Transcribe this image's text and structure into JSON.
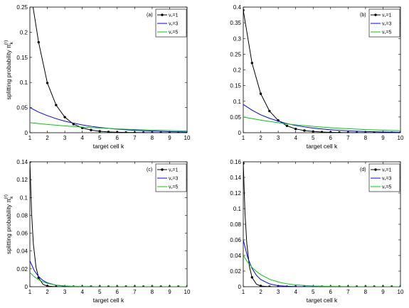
{
  "chart_data": [
    {
      "type": "line",
      "panel_label": "(a)",
      "xlabel": "target cell k",
      "ylabel": "splitting probability π",
      "ylabel_sub": "k",
      "ylabel_sup": "(r)",
      "xlim": [
        1,
        10
      ],
      "ylim": [
        0,
        0.25
      ],
      "xticks": [
        "1",
        "2",
        "3",
        "4",
        "5",
        "6",
        "7",
        "8",
        "9",
        "10"
      ],
      "yticks": [
        "0",
        "0.05",
        "0.1",
        "0.15",
        "0.2",
        "0.25"
      ],
      "legend_position": "top-right",
      "series": [
        {
          "name": "v = 1",
          "legend_main": "v",
          "legend_sub": "*",
          "legend_tail": "=1",
          "color": "#000000",
          "markers": true,
          "x": [
            1,
            1.5,
            2,
            2.5,
            3,
            3.5,
            4,
            4.5,
            5,
            5.5,
            6,
            6.5,
            7,
            7.5,
            8,
            8.5,
            9,
            9.5,
            10
          ],
          "y": [
            0.29,
            0.18,
            0.099,
            0.055,
            0.031,
            0.017,
            0.0095,
            0.0053,
            0.0029,
            0.0016,
            0.0009,
            0.0005,
            0.0003,
            0.0002,
            0.0001,
            0,
            0,
            0,
            0
          ]
        },
        {
          "name": "v = 3",
          "legend_main": "v",
          "legend_sub": "*",
          "legend_tail": "=3",
          "color": "#0000ff",
          "markers": false,
          "x": [
            1,
            1.5,
            2,
            2.5,
            3,
            3.5,
            4,
            4.5,
            5,
            5.5,
            6,
            6.5,
            7,
            7.5,
            8,
            8.5,
            9,
            9.5,
            10
          ],
          "y": [
            0.05,
            0.041,
            0.034,
            0.028,
            0.023,
            0.019,
            0.0155,
            0.0128,
            0.0105,
            0.0087,
            0.0071,
            0.0059,
            0.0048,
            0.004,
            0.0033,
            0.0027,
            0.0022,
            0.0018,
            0.0015
          ]
        },
        {
          "name": "v = 5",
          "legend_main": "v",
          "legend_sub": "*",
          "legend_tail": "=5",
          "color": "#00cc00",
          "markers": false,
          "x": [
            1,
            1.5,
            2,
            2.5,
            3,
            3.5,
            4,
            4.5,
            5,
            5.5,
            6,
            6.5,
            7,
            7.5,
            8,
            8.5,
            9,
            9.5,
            10
          ],
          "y": [
            0.02,
            0.0182,
            0.0165,
            0.015,
            0.0136,
            0.0124,
            0.0112,
            0.0102,
            0.0093,
            0.0084,
            0.0076,
            0.0069,
            0.0063,
            0.0057,
            0.0052,
            0.0047,
            0.0043,
            0.0039,
            0.0035
          ]
        }
      ]
    },
    {
      "type": "line",
      "panel_label": "(b)",
      "xlabel": "target cell k",
      "ylabel": "",
      "xlim": [
        1,
        10
      ],
      "ylim": [
        0,
        0.4
      ],
      "xticks": [
        "1",
        "2",
        "3",
        "4",
        "5",
        "6",
        "7",
        "8",
        "9",
        "10"
      ],
      "yticks": [
        "0",
        "0.05",
        "0.1",
        "0.15",
        "0.2",
        "0.25",
        "0.3",
        "0.35",
        "0.4"
      ],
      "legend_position": "top-right",
      "series": [
        {
          "name": "v = 1",
          "legend_main": "v",
          "legend_sub": "*",
          "legend_tail": "=1",
          "color": "#000000",
          "markers": true,
          "x": [
            1,
            1.5,
            2,
            2.5,
            3,
            3.5,
            4,
            4.5,
            5,
            5.5,
            6,
            6.5,
            7,
            7.5,
            8,
            8.5,
            9,
            9.5,
            10
          ],
          "y": [
            0.39,
            0.222,
            0.124,
            0.069,
            0.039,
            0.022,
            0.012,
            0.0069,
            0.0039,
            0.0022,
            0.0012,
            0.0007,
            0.0004,
            0.0002,
            0.0001,
            0,
            0,
            0,
            0
          ]
        },
        {
          "name": "v = 3",
          "legend_main": "v",
          "legend_sub": "*",
          "legend_tail": "=3",
          "color": "#0000ff",
          "markers": false,
          "x": [
            1,
            1.5,
            2,
            2.5,
            3,
            3.5,
            4,
            4.5,
            5,
            5.5,
            6,
            6.5,
            7,
            7.5,
            8,
            8.5,
            9,
            9.5,
            10
          ],
          "y": [
            0.09,
            0.072,
            0.057,
            0.046,
            0.037,
            0.029,
            0.023,
            0.0185,
            0.0148,
            0.0118,
            0.0094,
            0.0075,
            0.006,
            0.0048,
            0.0038,
            0.003,
            0.0024,
            0.0019,
            0.0015
          ]
        },
        {
          "name": "v = 5",
          "legend_main": "v",
          "legend_sub": "*",
          "legend_tail": "=5",
          "color": "#00cc00",
          "markers": false,
          "x": [
            1,
            1.5,
            2,
            2.5,
            3,
            3.5,
            4,
            4.5,
            5,
            5.5,
            6,
            6.5,
            7,
            7.5,
            8,
            8.5,
            9,
            9.5,
            10
          ],
          "y": [
            0.05,
            0.045,
            0.04,
            0.036,
            0.032,
            0.028,
            0.025,
            0.0225,
            0.02,
            0.0178,
            0.0159,
            0.0142,
            0.0126,
            0.0112,
            0.01,
            0.0089,
            0.008,
            0.0071,
            0.0063
          ]
        }
      ]
    },
    {
      "type": "line",
      "panel_label": "(c)",
      "xlabel": "target cell k",
      "ylabel": "splitting probability π",
      "ylabel_sub": "k",
      "ylabel_sup": "(r)",
      "xlim": [
        1,
        10
      ],
      "ylim": [
        0,
        0.14
      ],
      "xticks": [
        "1",
        "2",
        "3",
        "4",
        "5",
        "6",
        "7",
        "8",
        "9",
        "10"
      ],
      "yticks": [
        "0",
        "0.02",
        "0.04",
        "0.06",
        "0.08",
        "0.1",
        "0.12",
        "0.14"
      ],
      "legend_position": "top-right",
      "series": [
        {
          "name": "v = 1",
          "legend_main": "v",
          "legend_sub": "*",
          "legend_tail": "=1",
          "color": "#000000",
          "markers": true,
          "x": [
            1,
            1.1,
            1.2,
            1.35,
            1.5,
            1.75,
            2,
            2.5,
            3,
            3.5,
            4,
            4.5,
            5,
            5.5,
            6,
            6.5,
            7,
            7.5,
            8,
            8.5,
            9,
            9.5,
            10
          ],
          "y": [
            0.14,
            0.082,
            0.048,
            0.022,
            0.0101,
            0.0027,
            0.0007,
            0,
            0,
            0,
            0,
            0,
            0,
            0,
            0,
            0,
            0,
            0,
            0,
            0,
            0,
            0,
            0
          ]
        },
        {
          "name": "v = 3",
          "legend_main": "v",
          "legend_sub": "*",
          "legend_tail": "=3",
          "color": "#0000ff",
          "markers": false,
          "x": [
            1,
            1.25,
            1.5,
            1.75,
            2,
            2.5,
            3,
            3.5,
            4,
            5,
            6,
            7,
            8,
            9,
            10
          ],
          "y": [
            0.029,
            0.0181,
            0.0113,
            0.007,
            0.0044,
            0.0017,
            0.0007,
            0.0003,
            0.0001,
            0,
            0,
            0,
            0,
            0,
            0
          ]
        },
        {
          "name": "v = 5",
          "legend_main": "v",
          "legend_sub": "*",
          "legend_tail": "=5",
          "color": "#00cc00",
          "markers": false,
          "x": [
            1,
            1.25,
            1.5,
            1.75,
            2,
            2.5,
            3,
            3.5,
            4,
            5,
            6,
            7,
            8,
            9,
            10
          ],
          "y": [
            0.016,
            0.0112,
            0.0078,
            0.0054,
            0.0038,
            0.0018,
            0.0009,
            0.0004,
            0.0002,
            0,
            0,
            0,
            0,
            0,
            0
          ]
        }
      ]
    },
    {
      "type": "line",
      "panel_label": "(d)",
      "xlabel": "target cell k",
      "ylabel": "",
      "xlim": [
        1,
        10
      ],
      "ylim": [
        0,
        0.16
      ],
      "xticks": [
        "1",
        "2",
        "3",
        "4",
        "5",
        "6",
        "7",
        "8",
        "9",
        "10"
      ],
      "yticks": [
        "0",
        "0.02",
        "0.04",
        "0.06",
        "0.08",
        "0.1",
        "0.12",
        "0.14",
        "0.16"
      ],
      "legend_position": "top-right",
      "series": [
        {
          "name": "v = 1",
          "legend_main": "v",
          "legend_sub": "*",
          "legend_tail": "=1",
          "color": "#000000",
          "markers": true,
          "x": [
            1,
            1.1,
            1.2,
            1.35,
            1.5,
            1.75,
            2,
            2.5,
            3,
            3.5,
            4,
            4.5,
            5,
            5.5,
            6,
            6.5,
            7,
            7.5,
            8,
            8.5,
            9,
            9.5,
            10
          ],
          "y": [
            0.158,
            0.094,
            0.056,
            0.026,
            0.012,
            0.0033,
            0.0009,
            0,
            0,
            0,
            0,
            0,
            0,
            0,
            0,
            0,
            0,
            0,
            0,
            0,
            0,
            0,
            0
          ]
        },
        {
          "name": "v = 3",
          "legend_main": "v",
          "legend_sub": "*",
          "legend_tail": "=3",
          "color": "#0000ff",
          "markers": false,
          "x": [
            1,
            1.25,
            1.5,
            1.75,
            2,
            2.5,
            3,
            3.5,
            4,
            5,
            6,
            7,
            8,
            9,
            10
          ],
          "y": [
            0.06,
            0.0375,
            0.0235,
            0.0147,
            0.0092,
            0.0036,
            0.0014,
            0.0006,
            0.0002,
            0,
            0,
            0,
            0,
            0,
            0
          ]
        },
        {
          "name": "v = 5",
          "legend_main": "v",
          "legend_sub": "*",
          "legend_tail": "=5",
          "color": "#00cc00",
          "markers": false,
          "x": [
            1,
            1.25,
            1.5,
            1.75,
            2,
            2.5,
            3,
            3.5,
            4,
            5,
            6,
            7,
            8,
            9,
            10
          ],
          "y": [
            0.04,
            0.0315,
            0.0248,
            0.0196,
            0.0155,
            0.0096,
            0.006,
            0.0037,
            0.0023,
            0.0009,
            0.0004,
            0.0001,
            0,
            0,
            0
          ]
        }
      ]
    }
  ]
}
